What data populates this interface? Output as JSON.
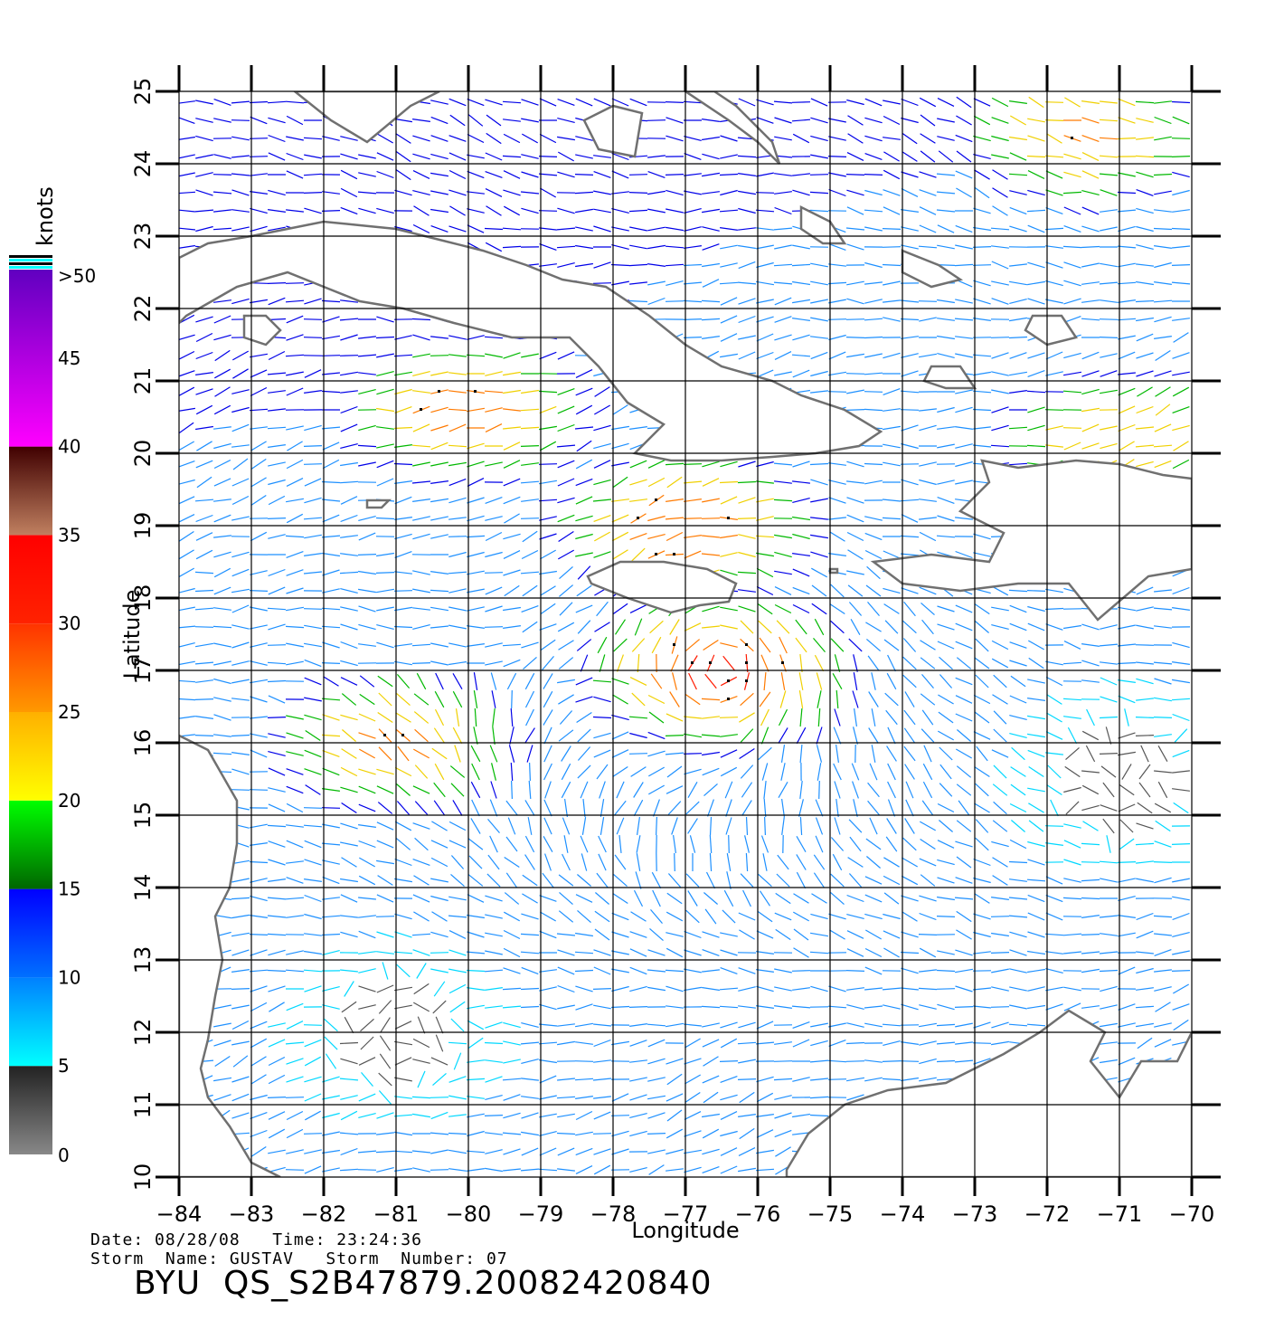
{
  "chart_data": {
    "type": "wind-vector-map",
    "xlabel": "Longitude",
    "ylabel": "Latitude",
    "xlim": [
      -84,
      -70
    ],
    "ylim": [
      10,
      25
    ],
    "x_ticks": [
      "−84",
      "−83",
      "−82",
      "−81",
      "−80",
      "−79",
      "−78",
      "−77",
      "−76",
      "−75",
      "−74",
      "−73",
      "−72",
      "−71",
      "−70"
    ],
    "y_ticks": [
      "10",
      "11",
      "12",
      "13",
      "14",
      "15",
      "16",
      "17",
      "18",
      "19",
      "20",
      "21",
      "22",
      "23",
      "24",
      "25"
    ],
    "grid": true,
    "colorbar": {
      "units": "knots",
      "labels": [
        "0",
        "5",
        "10",
        "15",
        "20",
        "25",
        "30",
        "35",
        "40",
        "45",
        ">50"
      ],
      "label_values": [
        0,
        5,
        10,
        15,
        20,
        25,
        30,
        35,
        40,
        45,
        50
      ],
      "bands": [
        {
          "from": 0,
          "to": 5,
          "color_from": "#888888",
          "color_to": "#222222"
        },
        {
          "from": 5,
          "to": 10,
          "color_from": "#00ffff",
          "color_to": "#0080ff"
        },
        {
          "from": 10,
          "to": 15,
          "color_from": "#0070ff",
          "color_to": "#0000ff"
        },
        {
          "from": 15,
          "to": 20,
          "color_from": "#006600",
          "color_to": "#00ff00"
        },
        {
          "from": 20,
          "to": 25,
          "color_from": "#ffff00",
          "color_to": "#ffb000"
        },
        {
          "from": 25,
          "to": 30,
          "color_from": "#ff9900",
          "color_to": "#ff3300"
        },
        {
          "from": 30,
          "to": 35,
          "color_from": "#ff2200",
          "color_to": "#ff0000"
        },
        {
          "from": 35,
          "to": 40,
          "color_from": "#c08060",
          "color_to": "#400000"
        },
        {
          "from": 40,
          "to": 50,
          "color_from": "#ff00ff",
          "color_to": "#6000c0"
        }
      ]
    },
    "wind_field": {
      "grid_spacing_deg": 0.25,
      "max_centers": [
        {
          "lon": -76.5,
          "lat": 17.0,
          "speed": 33
        },
        {
          "lon": -77.0,
          "lat": 19.0,
          "speed": 30
        },
        {
          "lon": -80.0,
          "lat": 20.6,
          "speed": 28
        },
        {
          "lon": -71.5,
          "lat": 24.4,
          "speed": 26
        },
        {
          "lon": -71.0,
          "lat": 20.2,
          "speed": 25
        },
        {
          "lon": -81.0,
          "lat": 16.0,
          "speed": 27
        }
      ],
      "calm_zones": [
        {
          "lon": -71.0,
          "lat": 15.5,
          "speed": 3
        },
        {
          "lon": -81.0,
          "lat": 12.0,
          "speed": 4
        }
      ]
    },
    "coastlines": [
      {
        "name": "cuba",
        "points": [
          [
            -84,
            22.7
          ],
          [
            -83.6,
            22.9
          ],
          [
            -83.0,
            23.0
          ],
          [
            -82.5,
            23.1
          ],
          [
            -82.0,
            23.2
          ],
          [
            -81.5,
            23.15
          ],
          [
            -81.0,
            23.1
          ],
          [
            -80.4,
            22.95
          ],
          [
            -79.8,
            22.8
          ],
          [
            -79.2,
            22.6
          ],
          [
            -78.7,
            22.4
          ],
          [
            -78.1,
            22.3
          ],
          [
            -77.5,
            21.9
          ],
          [
            -77.0,
            21.5
          ],
          [
            -76.5,
            21.2
          ],
          [
            -75.8,
            21.0
          ],
          [
            -75.4,
            20.8
          ],
          [
            -74.8,
            20.6
          ],
          [
            -74.3,
            20.3
          ],
          [
            -74.6,
            20.1
          ],
          [
            -75.2,
            20.0
          ],
          [
            -75.8,
            19.95
          ],
          [
            -76.5,
            19.9
          ],
          [
            -77.2,
            19.9
          ],
          [
            -77.7,
            20.0
          ],
          [
            -77.3,
            20.4
          ],
          [
            -77.8,
            20.7
          ],
          [
            -78.2,
            21.2
          ],
          [
            -78.6,
            21.6
          ],
          [
            -79.4,
            21.6
          ],
          [
            -80.2,
            21.8
          ],
          [
            -80.9,
            22.0
          ],
          [
            -81.5,
            22.1
          ],
          [
            -82.0,
            22.3
          ],
          [
            -82.5,
            22.5
          ],
          [
            -83.2,
            22.3
          ],
          [
            -83.9,
            21.9
          ],
          [
            -84,
            21.8
          ]
        ]
      },
      {
        "name": "isla-juventud",
        "points": [
          [
            -83.1,
            21.9
          ],
          [
            -82.8,
            21.9
          ],
          [
            -82.6,
            21.7
          ],
          [
            -82.8,
            21.5
          ],
          [
            -83.1,
            21.6
          ]
        ]
      },
      {
        "name": "jamaica",
        "points": [
          [
            -78.35,
            18.3
          ],
          [
            -77.9,
            18.5
          ],
          [
            -77.3,
            18.5
          ],
          [
            -76.7,
            18.4
          ],
          [
            -76.3,
            18.2
          ],
          [
            -76.4,
            17.95
          ],
          [
            -76.8,
            17.9
          ],
          [
            -77.2,
            17.8
          ],
          [
            -77.8,
            18.0
          ],
          [
            -78.3,
            18.2
          ]
        ]
      },
      {
        "name": "hispaniola",
        "points": [
          [
            -74.4,
            18.5
          ],
          [
            -73.6,
            18.6
          ],
          [
            -72.8,
            18.5
          ],
          [
            -72.6,
            18.9
          ],
          [
            -73.2,
            19.2
          ],
          [
            -72.8,
            19.6
          ],
          [
            -72.9,
            19.9
          ],
          [
            -72.4,
            19.8
          ],
          [
            -71.6,
            19.9
          ],
          [
            -71.0,
            19.85
          ],
          [
            -70.4,
            19.7
          ],
          [
            -70,
            19.65
          ],
          [
            -70,
            18.4
          ],
          [
            -70.6,
            18.3
          ],
          [
            -71.3,
            17.7
          ],
          [
            -71.7,
            18.2
          ],
          [
            -72.4,
            18.2
          ],
          [
            -73.2,
            18.1
          ],
          [
            -74.0,
            18.2
          ]
        ]
      },
      {
        "name": "florida",
        "points": [
          [
            -82.4,
            25
          ],
          [
            -81.9,
            24.6
          ],
          [
            -81.4,
            24.3
          ],
          [
            -80.8,
            24.8
          ],
          [
            -80.4,
            25
          ]
        ]
      },
      {
        "name": "andros",
        "points": [
          [
            -78.0,
            24.8
          ],
          [
            -77.6,
            24.7
          ],
          [
            -77.7,
            24.1
          ],
          [
            -78.2,
            24.2
          ],
          [
            -78.4,
            24.6
          ]
        ]
      },
      {
        "name": "bahamas-1",
        "points": [
          [
            -77.0,
            25
          ],
          [
            -76.4,
            24.6
          ],
          [
            -76.0,
            24.3
          ],
          [
            -75.7,
            24.0
          ],
          [
            -75.8,
            24.3
          ],
          [
            -76.3,
            24.8
          ],
          [
            -76.6,
            25
          ]
        ]
      },
      {
        "name": "bahamas-2",
        "points": [
          [
            -75.4,
            23.4
          ],
          [
            -75.0,
            23.2
          ],
          [
            -74.8,
            22.9
          ],
          [
            -75.1,
            22.9
          ],
          [
            -75.4,
            23.1
          ]
        ]
      },
      {
        "name": "bahamas-3",
        "points": [
          [
            -74.0,
            22.8
          ],
          [
            -73.5,
            22.6
          ],
          [
            -73.2,
            22.4
          ],
          [
            -73.6,
            22.3
          ],
          [
            -74.0,
            22.5
          ]
        ]
      },
      {
        "name": "turks-caicos",
        "points": [
          [
            -72.2,
            21.9
          ],
          [
            -71.8,
            21.9
          ],
          [
            -71.6,
            21.6
          ],
          [
            -72.0,
            21.5
          ],
          [
            -72.3,
            21.7
          ]
        ]
      },
      {
        "name": "great-inagua",
        "points": [
          [
            -73.6,
            21.2
          ],
          [
            -73.2,
            21.2
          ],
          [
            -73.0,
            20.9
          ],
          [
            -73.4,
            20.9
          ],
          [
            -73.7,
            21.0
          ]
        ]
      },
      {
        "name": "central-america",
        "points": [
          [
            -84,
            16.1
          ],
          [
            -83.6,
            15.9
          ],
          [
            -83.2,
            15.2
          ],
          [
            -83.2,
            14.6
          ],
          [
            -83.3,
            14.0
          ],
          [
            -83.5,
            13.6
          ],
          [
            -83.4,
            13.0
          ],
          [
            -83.5,
            12.5
          ],
          [
            -83.6,
            11.9
          ],
          [
            -83.7,
            11.5
          ],
          [
            -83.6,
            11.1
          ],
          [
            -83.3,
            10.7
          ],
          [
            -83.0,
            10.2
          ],
          [
            -82.6,
            10
          ],
          [
            -84,
            10
          ]
        ]
      },
      {
        "name": "south-america",
        "points": [
          [
            -75.6,
            10.1
          ],
          [
            -75.3,
            10.6
          ],
          [
            -74.8,
            11.0
          ],
          [
            -74.2,
            11.2
          ],
          [
            -73.4,
            11.3
          ],
          [
            -72.6,
            11.7
          ],
          [
            -72.1,
            12.0
          ],
          [
            -71.7,
            12.3
          ],
          [
            -71.2,
            12.0
          ],
          [
            -71.4,
            11.6
          ],
          [
            -71.0,
            11.1
          ],
          [
            -70.7,
            11.6
          ],
          [
            -70.2,
            11.6
          ],
          [
            -70.0,
            12.0
          ],
          [
            -70,
            10
          ],
          [
            -75.6,
            10
          ]
        ]
      },
      {
        "name": "caymans",
        "points": [
          [
            -81.4,
            19.35
          ],
          [
            -81.1,
            19.35
          ],
          [
            -81.2,
            19.25
          ],
          [
            -81.4,
            19.25
          ]
        ]
      },
      {
        "name": "navassa",
        "points": [
          [
            -75.0,
            18.4
          ],
          [
            -74.9,
            18.4
          ],
          [
            -74.9,
            18.35
          ],
          [
            -75.0,
            18.35
          ]
        ]
      }
    ]
  },
  "colorbar_units": "knots",
  "footer": {
    "date_line": "Date: 08/28/08   Time: 23:24:36",
    "storm_line": "Storm  Name: GUSTAV   Storm  Number: 07",
    "title": "BYU  QS_S2B47879.20082420840"
  }
}
